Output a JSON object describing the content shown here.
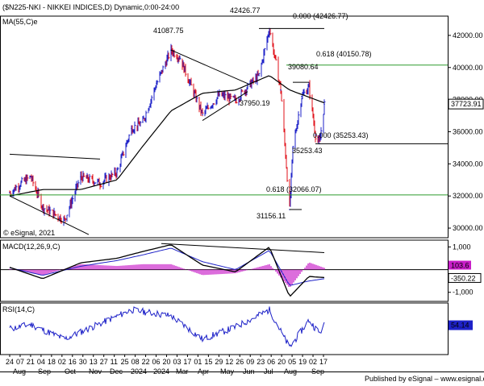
{
  "header": {
    "title": "($N225-NKI - NIKKEI INDICES,D) Dynamic,0:00-24:00",
    "ma_label": "MA(55,C)e",
    "copyright": "© eSignal, 2021"
  },
  "footer": {
    "publisher": "Published by eSignal – www.esignal.com"
  },
  "colors": {
    "price_up": "#1e22c8",
    "price_down": "#e0101a",
    "ma": "#000000",
    "fib_line": "#2e9b2e",
    "macd_hist_pos": "#c81ec8",
    "rsi_line": "#1e22c8"
  },
  "chart_data": [
    {
      "type": "line",
      "title": "($N225-NKI - NIKKEI INDICES,D) Dynamic,0:00-24:00",
      "ylim": [
        29400,
        43200
      ],
      "y_ticks": [
        "30000.00",
        "32000.00",
        "34000.00",
        "36000.00",
        "38000.00",
        "40000.00",
        "42000.00"
      ],
      "last_value_label": "37723.91",
      "series": [
        {
          "name": "",
          "x": [
            "2023-08-24",
            "2023-09-07",
            "2023-09-19",
            "2023-10-04",
            "2023-10-31",
            "2023-11-20",
            "2023-12-14",
            "2024-01-04",
            "2024-01-22",
            "2024-02-05",
            "2024-02-22",
            "2024-03-11",
            "2024-03-22",
            "2024-04-19",
            "2024-05-10",
            "2024-05-30",
            "2024-06-14",
            "2024-06-28",
            "2024-07-11",
            "2024-07-25",
            "2024-08-05",
            "2024-08-09",
            "2024-08-20",
            "2024-08-29",
            "2024-09-06",
            "2024-09-11",
            "2024-09-17"
          ],
          "values": [
            32200,
            32800,
            33200,
            31300,
            30500,
            33200,
            32800,
            33500,
            36200,
            36600,
            39000,
            41087.75,
            40600,
            37068,
            38300,
            37950.19,
            38800,
            39500,
            42426.77,
            38600,
            31156.11,
            35000,
            38200,
            38800,
            35800,
            35253.43,
            37723.91
          ]
        },
        {
          "name": "MA(55,C)e",
          "x": [
            "2023-08-24",
            "2023-10-04",
            "2023-11-20",
            "2024-01-04",
            "2024-02-05",
            "2024-03-11",
            "2024-04-19",
            "2024-05-30",
            "2024-07-11",
            "2024-08-05",
            "2024-09-17"
          ],
          "values": [
            32000,
            32400,
            32400,
            33000,
            35100,
            37300,
            38400,
            38600,
            39500,
            38600,
            37800
          ]
        }
      ],
      "annotations": [
        {
          "text": "42426.77",
          "value": 42426.77
        },
        {
          "text": "0.000 (42426.77)",
          "value": 42426.77
        },
        {
          "text": "41087.75",
          "value": 41087.75
        },
        {
          "text": "0.618 (40150.78)",
          "value": 40150.78
        },
        {
          "text": "39080.64",
          "value": 39080.64
        },
        {
          "text": "37950.19",
          "value": 37950.19
        },
        {
          "text": "0.000 (35253.43)",
          "value": 35253.43
        },
        {
          "text": "35253.43",
          "value": 35253.43
        },
        {
          "text": "0.618 (32066.07)",
          "value": 32066.07
        },
        {
          "text": "31156.11",
          "value": 31156.11
        }
      ],
      "grid": false,
      "scale": "linear"
    },
    {
      "type": "line",
      "title": "MACD(12,26,9,C)",
      "ylim": [
        -1400,
        1300
      ],
      "y_ticks": [
        "1,000",
        "-1,000"
      ],
      "value_labels": [
        "103.6",
        "-350.22"
      ],
      "series": [
        {
          "name": "MACD",
          "x": [
            "2023-08-24",
            "2023-10-04",
            "2023-11-20",
            "2024-01-04",
            "2024-02-05",
            "2024-03-11",
            "2024-04-19",
            "2024-05-30",
            "2024-07-11",
            "2024-08-05",
            "2024-08-29",
            "2024-09-17"
          ],
          "values": [
            100,
            -400,
            300,
            500,
            800,
            1100,
            200,
            -100,
            1000,
            -1200,
            -300,
            -350
          ]
        },
        {
          "name": "Signal",
          "x": [
            "2023-08-24",
            "2023-10-04",
            "2023-11-20",
            "2024-01-04",
            "2024-02-05",
            "2024-03-11",
            "2024-04-19",
            "2024-05-30",
            "2024-07-11",
            "2024-08-05",
            "2024-08-29",
            "2024-09-17"
          ],
          "values": [
            80,
            -250,
            150,
            400,
            650,
            950,
            350,
            0,
            850,
            -700,
            -500,
            -400
          ]
        }
      ]
    },
    {
      "type": "line",
      "title": "RSI(14,C)",
      "ylim": [
        20,
        80
      ],
      "last_value_label": "54.14",
      "series": [
        {
          "name": "RSI",
          "x": [
            "2023-08-24",
            "2023-09-19",
            "2023-10-31",
            "2024-01-22",
            "2024-03-11",
            "2024-04-19",
            "2024-05-30",
            "2024-07-11",
            "2024-08-05",
            "2024-08-29",
            "2024-09-11",
            "2024-09-17"
          ],
          "values": [
            50,
            55,
            38,
            72,
            65,
            38,
            52,
            72,
            28,
            60,
            45,
            54.14
          ]
        }
      ]
    }
  ],
  "x_axis": {
    "days": [
      "24",
      "07",
      "21",
      "04",
      "18",
      "02",
      "16",
      "30",
      "13",
      "27",
      "11",
      "25",
      "08",
      "22",
      "06",
      "20",
      "03",
      "17",
      "01",
      "15",
      "29",
      "12",
      "26",
      "09",
      "23",
      "06",
      "20",
      "05",
      "19",
      "02",
      "17"
    ],
    "months": [
      "Aug",
      "Sep",
      "Oct",
      "Nov",
      "Dec",
      "2024",
      "2024",
      "Mar",
      "Apr",
      "May",
      "Jun",
      "Jul",
      "Aug",
      "Sep"
    ]
  }
}
